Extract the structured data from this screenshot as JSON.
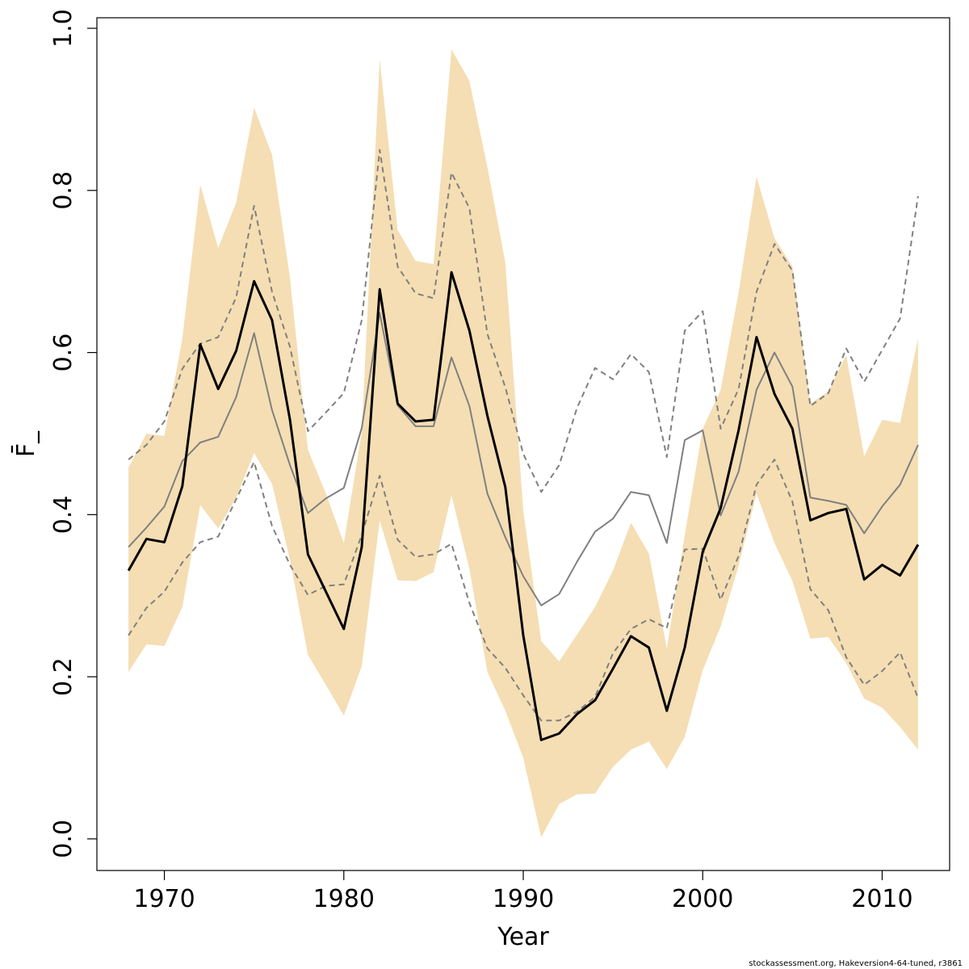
{
  "chart_data": {
    "type": "line",
    "x_label": "Year",
    "y_label": "F̄_",
    "footnote": "stockassessment.org, Hakeversion4-64-tuned, r3861",
    "x": [
      1968,
      1969,
      1970,
      1971,
      1972,
      1973,
      1974,
      1975,
      1976,
      1977,
      1978,
      1979,
      1980,
      1981,
      1982,
      1983,
      1984,
      1985,
      1986,
      1987,
      1988,
      1989,
      1990,
      1991,
      1992,
      1993,
      1994,
      1995,
      1996,
      1997,
      1998,
      1999,
      2000,
      2001,
      2002,
      2003,
      2004,
      2005,
      2006,
      2007,
      2008,
      2009,
      2010,
      2011,
      2012
    ],
    "band": {
      "color": "#f5deb3",
      "upper": [
        0.458,
        0.5,
        0.497,
        0.617,
        0.807,
        0.729,
        0.785,
        0.902,
        0.844,
        0.692,
        0.48,
        0.426,
        0.365,
        0.502,
        0.962,
        0.751,
        0.713,
        0.709,
        0.974,
        0.935,
        0.829,
        0.711,
        0.405,
        0.244,
        0.219,
        0.252,
        0.286,
        0.331,
        0.39,
        0.352,
        0.235,
        0.375,
        0.506,
        0.554,
        0.674,
        0.817,
        0.741,
        0.706,
        0.537,
        0.552,
        0.597,
        0.472,
        0.517,
        0.513,
        0.617
      ],
      "lower": [
        0.206,
        0.24,
        0.238,
        0.286,
        0.412,
        0.383,
        0.421,
        0.476,
        0.438,
        0.344,
        0.227,
        0.19,
        0.152,
        0.213,
        0.393,
        0.319,
        0.318,
        0.329,
        0.424,
        0.333,
        0.206,
        0.158,
        0.1,
        0.002,
        0.043,
        0.055,
        0.056,
        0.089,
        0.11,
        0.12,
        0.086,
        0.126,
        0.208,
        0.262,
        0.337,
        0.426,
        0.365,
        0.318,
        0.247,
        0.249,
        0.217,
        0.173,
        0.162,
        0.138,
        0.11
      ]
    },
    "series": [
      {
        "color": "#808080",
        "width": 2,
        "dash": true,
        "values": [
          0.468,
          0.486,
          0.515,
          0.58,
          0.611,
          0.619,
          0.668,
          0.781,
          0.675,
          0.607,
          0.503,
          0.526,
          0.55,
          0.64,
          0.85,
          0.706,
          0.673,
          0.667,
          0.822,
          0.778,
          0.623,
          0.557,
          0.475,
          0.428,
          0.461,
          0.532,
          0.581,
          0.567,
          0.598,
          0.576,
          0.471,
          0.627,
          0.651,
          0.506,
          0.555,
          0.675,
          0.734,
          0.701,
          0.534,
          0.55,
          0.605,
          0.564,
          0.603,
          0.642,
          0.793
        ]
      },
      {
        "color": "#808080",
        "width": 2,
        "dash": true,
        "values": [
          0.251,
          0.285,
          0.305,
          0.341,
          0.366,
          0.373,
          0.419,
          0.465,
          0.386,
          0.338,
          0.301,
          0.312,
          0.314,
          0.375,
          0.448,
          0.369,
          0.348,
          0.351,
          0.364,
          0.291,
          0.235,
          0.211,
          0.177,
          0.146,
          0.146,
          0.157,
          0.175,
          0.229,
          0.259,
          0.271,
          0.26,
          0.357,
          0.358,
          0.295,
          0.349,
          0.437,
          0.468,
          0.416,
          0.308,
          0.282,
          0.224,
          0.19,
          0.207,
          0.23,
          0.174
        ]
      },
      {
        "color": "#808080",
        "width": 2,
        "dash": false,
        "values": [
          0.36,
          0.384,
          0.41,
          0.466,
          0.489,
          0.496,
          0.545,
          0.624,
          0.529,
          0.461,
          0.402,
          0.42,
          0.433,
          0.507,
          0.649,
          0.535,
          0.509,
          0.509,
          0.594,
          0.534,
          0.426,
          0.372,
          0.324,
          0.288,
          0.302,
          0.342,
          0.379,
          0.395,
          0.428,
          0.424,
          0.365,
          0.492,
          0.504,
          0.399,
          0.453,
          0.554,
          0.6,
          0.558,
          0.421,
          0.417,
          0.412,
          0.377,
          0.41,
          0.437,
          0.486
        ]
      },
      {
        "color": "#000000",
        "width": 3,
        "dash": false,
        "values": [
          0.331,
          0.37,
          0.366,
          0.435,
          0.61,
          0.555,
          0.602,
          0.688,
          0.64,
          0.517,
          0.351,
          0.305,
          0.259,
          0.36,
          0.678,
          0.537,
          0.515,
          0.517,
          0.699,
          0.627,
          0.522,
          0.434,
          0.251,
          0.122,
          0.13,
          0.154,
          0.171,
          0.21,
          0.25,
          0.236,
          0.158,
          0.236,
          0.354,
          0.408,
          0.504,
          0.619,
          0.549,
          0.506,
          0.393,
          0.402,
          0.407,
          0.32,
          0.338,
          0.325,
          0.363
        ]
      }
    ],
    "xlim": [
      1966.24,
      2013.76
    ],
    "ylim": [
      -0.039,
      1.013
    ],
    "xticks": [
      1970,
      1980,
      1990,
      2000,
      2010
    ],
    "yticks": [
      {
        "value": 0,
        "label": "0.0"
      },
      0.2,
      0.4,
      0.6,
      0.8,
      {
        "value": 1,
        "label": "1.0"
      }
    ]
  }
}
